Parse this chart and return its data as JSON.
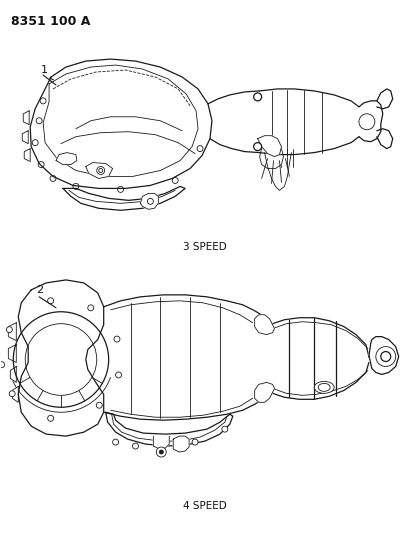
{
  "title_code": "8351 100 A",
  "label1": "1",
  "label2": "2",
  "label_3speed": "3 SPEED",
  "label_4speed": "4 SPEED",
  "bg_color": "#ffffff",
  "line_color": "#1a1a1a",
  "text_color": "#111111",
  "fig_width": 4.1,
  "fig_height": 5.33,
  "dpi": 100
}
